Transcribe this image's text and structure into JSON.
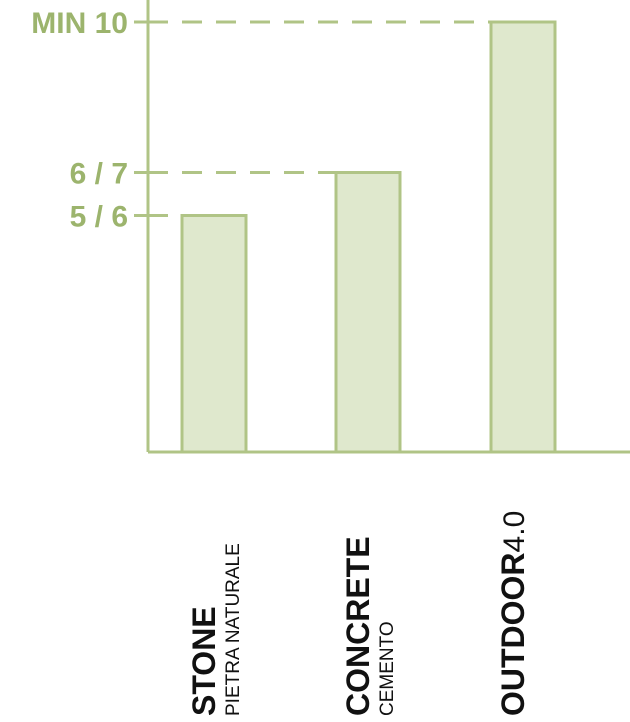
{
  "chart_data": {
    "type": "bar",
    "categories": [
      {
        "name": "STONE",
        "sub": "PIETRA NATURALE",
        "suffix": ""
      },
      {
        "name": "CONCRETE",
        "sub": "CEMENTO",
        "suffix": ""
      },
      {
        "name": "OUTDOOR",
        "sub": "",
        "suffix": "4.0"
      }
    ],
    "values": [
      5.5,
      6.5,
      10
    ],
    "ylim": [
      0,
      10.3
    ],
    "ticks": [
      {
        "value": 10,
        "label": "MIN 10"
      },
      {
        "value": 6.5,
        "label": "6 / 7"
      },
      {
        "value": 5.5,
        "label": "5 / 6"
      }
    ],
    "grid": false,
    "colors": {
      "bar_fill": "#dfe8cd",
      "bar_stroke": "#b0c486",
      "axis": "#b0c486",
      "tick_label": "#9cb46d",
      "category_text": "#111111"
    }
  }
}
